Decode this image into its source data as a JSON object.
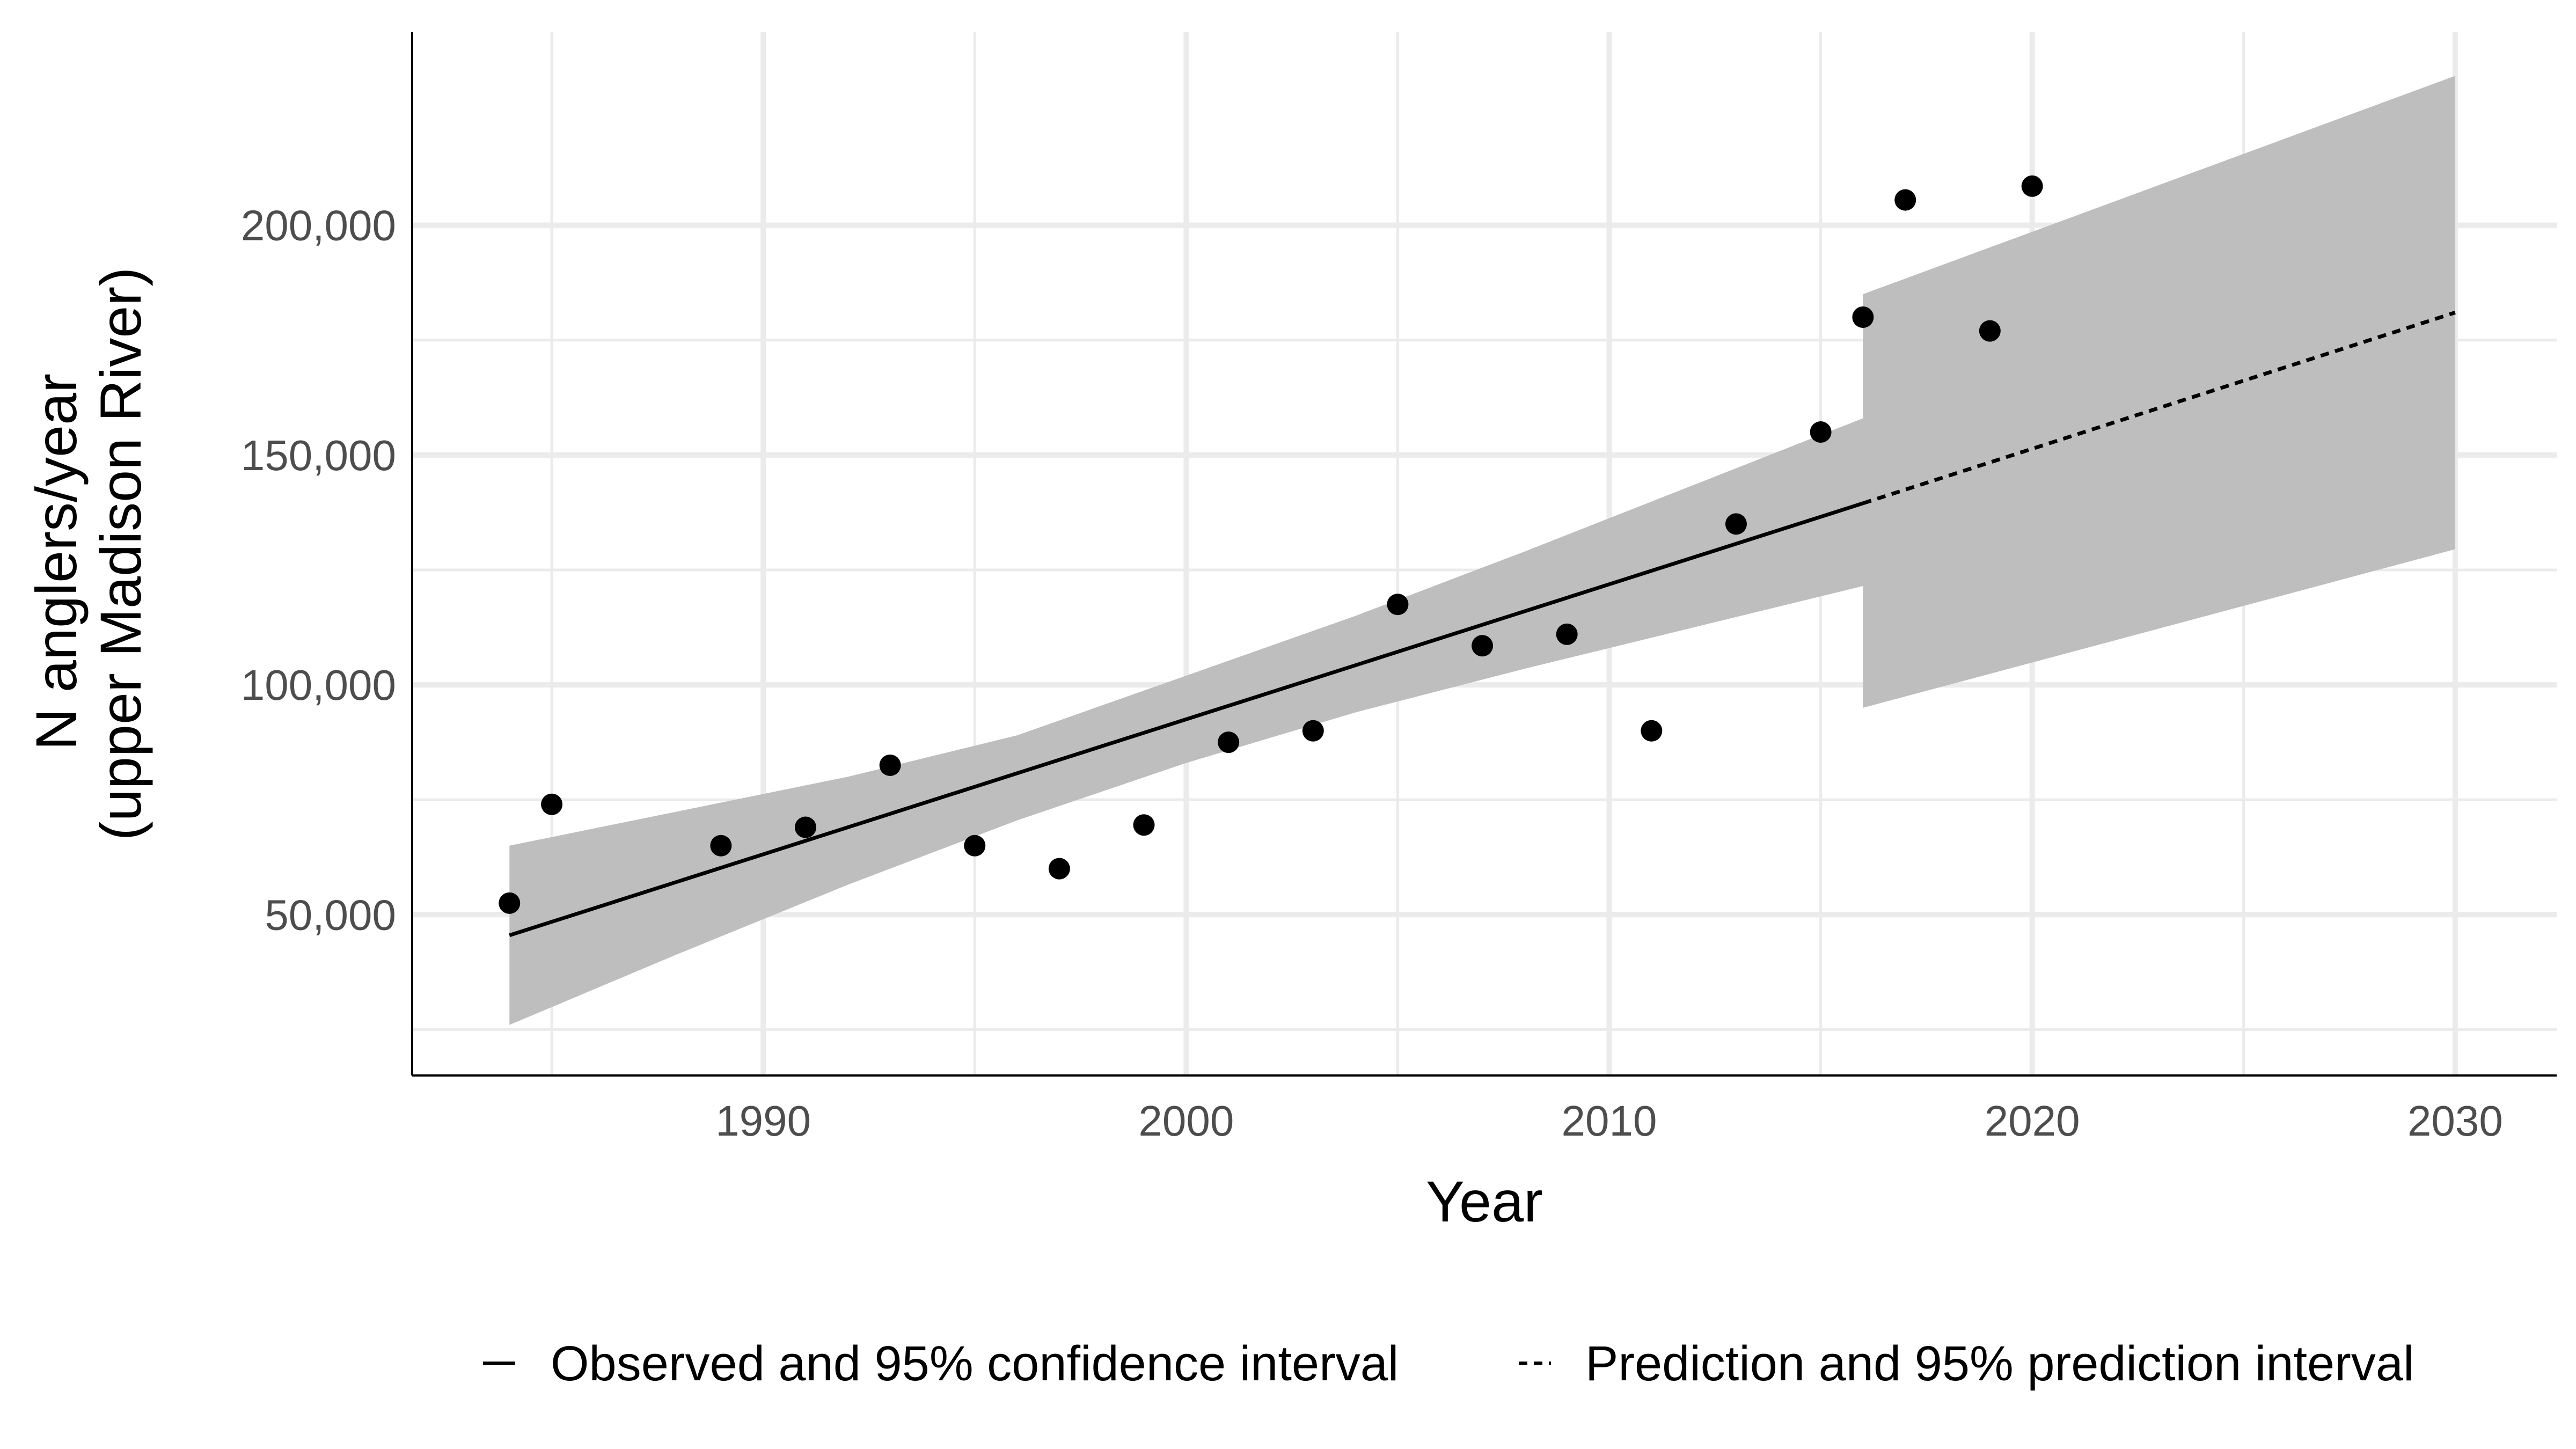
{
  "chart_data": {
    "type": "scatter",
    "xlabel": "Year",
    "ylabel_lines": [
      "N anglers/year",
      "(upper Madison River)"
    ],
    "xlim": [
      1981.7,
      2032.4
    ],
    "ylim": [
      15000,
      242000
    ],
    "x_ticks": [
      1990,
      2000,
      2010,
      2020,
      2030
    ],
    "x_tick_labels": [
      "1990",
      "2000",
      "2010",
      "2020",
      "2030"
    ],
    "y_ticks": [
      50000,
      100000,
      150000,
      200000
    ],
    "y_tick_labels": [
      "50,000",
      "100,000",
      "150,000",
      "200,000"
    ],
    "grid": true,
    "legend_position": "bottom",
    "colors": {
      "points": "#000000",
      "ribbon": "#bebebe",
      "grid": "#ebebeb",
      "line": "#000000"
    },
    "series": [
      {
        "type": "scatter",
        "x": [
          1984,
          1985,
          1989,
          1991,
          1993,
          1995,
          1997,
          1999,
          2001,
          2003,
          2005,
          2007,
          2009,
          2011,
          2013,
          2015,
          2016,
          2017,
          2019,
          2020
        ],
        "y": [
          52500,
          74000,
          65000,
          69000,
          82500,
          65000,
          60000,
          69500,
          87500,
          90000,
          117500,
          108500,
          111000,
          90000,
          135000,
          155000,
          180000,
          205500,
          177000,
          208500
        ]
      },
      {
        "name": "Observed and 95% confidence interval",
        "type": "line",
        "style": "solid",
        "x": [
          1984,
          2016
        ],
        "y": [
          45500,
          139500
        ],
        "ribbon": {
          "x": [
            1984,
            1988,
            1992,
            1996,
            2000,
            2004,
            2008,
            2012,
            2016
          ],
          "lower": [
            26000,
            41500,
            56500,
            70500,
            83000,
            94000,
            103500,
            112500,
            121500
          ],
          "upper": [
            65000,
            72500,
            80000,
            89000,
            102000,
            115000,
            129000,
            143500,
            158000
          ]
        }
      },
      {
        "name": "Prediction and 95% prediction interval",
        "type": "line",
        "style": "dashed",
        "x": [
          2016,
          2030
        ],
        "y": [
          139500,
          181000
        ],
        "ribbon": {
          "x": [
            2016,
            2030
          ],
          "lower": [
            95000,
            129500
          ],
          "upper": [
            185000,
            232500
          ]
        }
      }
    ]
  }
}
